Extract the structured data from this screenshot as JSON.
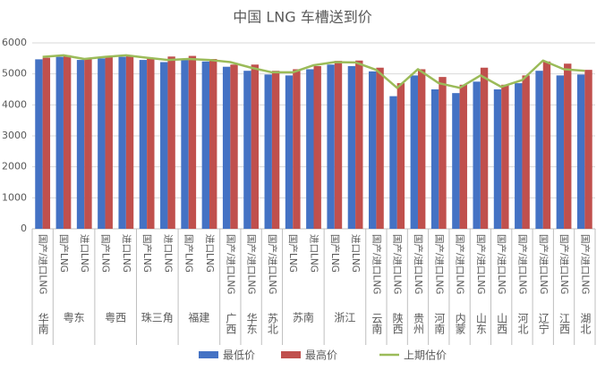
{
  "chart_data": {
    "type": "bar_line",
    "title": "中国 LNG 车槽送到价",
    "categories": [
      "国产/进口LNG",
      "国产LNG",
      "进口LNG",
      "国产LNG",
      "进口LNG",
      "国产LNG",
      "进口LNG",
      "国产LNG",
      "进口LNG",
      "国产/进口LNG",
      "国产/进口LNG",
      "国产/进口LNG",
      "国产LNG",
      "进口LNG",
      "国产LNG",
      "进口LNG",
      "国产/进口LNG",
      "国产/进口LNG",
      "国产/进口LNG",
      "国产/进口LNG",
      "国产/进口LNG",
      "国产/进口LNG",
      "国产/进口LNG",
      "国产/进口LNG",
      "国产/进口LNG",
      "国产/进口LNG",
      "国产/进口LNG"
    ],
    "group_labels": [
      "华南",
      "粤东",
      null,
      "粤西",
      null,
      "珠三角",
      null,
      "福建",
      null,
      "广西",
      "华东",
      "苏北",
      "苏南",
      null,
      "浙江",
      null,
      "云南",
      "陕西",
      "贵州",
      "河南",
      "内蒙",
      "山东",
      "山西",
      "河北",
      "辽宁",
      "江西",
      "湖北"
    ],
    "series": [
      {
        "name": "最低价",
        "color": "#4472c4",
        "kind": "bar",
        "values": [
          5470,
          5550,
          5450,
          5500,
          5550,
          5450,
          5380,
          5450,
          5400,
          5230,
          5100,
          4980,
          4950,
          5150,
          5300,
          5250,
          5080,
          4280,
          4950,
          4500,
          4380,
          4750,
          4500,
          4700,
          5100,
          4950,
          4980
        ]
      },
      {
        "name": "最高价",
        "color": "#c0504d",
        "kind": "bar",
        "values": [
          5520,
          5600,
          5500,
          5550,
          5600,
          5500,
          5560,
          5580,
          5480,
          5300,
          5300,
          5100,
          5150,
          5250,
          5420,
          5430,
          5200,
          4700,
          5150,
          4900,
          4650,
          5200,
          4650,
          4950,
          5400,
          5330,
          5130
        ]
      },
      {
        "name": "上期估价",
        "color": "#9bbb59",
        "kind": "line",
        "values": [
          5550,
          5600,
          5480,
          5550,
          5600,
          5520,
          5450,
          5480,
          5450,
          5380,
          5200,
          5050,
          5050,
          5280,
          5380,
          5370,
          5130,
          4550,
          5150,
          4700,
          4550,
          4950,
          4580,
          4800,
          5430,
          5150,
          5100
        ]
      }
    ],
    "ylim": [
      0,
      6000
    ],
    "yticks": [
      0,
      1000,
      2000,
      3000,
      4000,
      5000,
      6000
    ],
    "grid": true
  }
}
